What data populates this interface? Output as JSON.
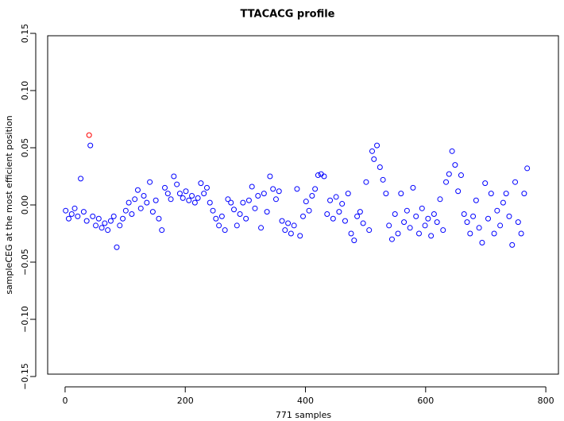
{
  "chart_data": {
    "type": "scatter",
    "title": "TTACACG profile",
    "x_label": "771 samples",
    "y_label": "sampleCEG at the most efficient position",
    "xlim": [
      -29,
      821
    ],
    "ylim": [
      -0.15,
      0.15
    ],
    "xticks": [
      0,
      200,
      400,
      600,
      800
    ],
    "yticks": [
      {
        "value": -0.15,
        "label": "−0.15"
      },
      {
        "value": -0.1,
        "label": "−0.10"
      },
      {
        "value": -0.05,
        "label": "−0.05"
      },
      {
        "value": 0,
        "label": "0.00"
      },
      {
        "value": 0.05,
        "label": "0.05"
      },
      {
        "value": 0.1,
        "label": "0.10"
      },
      {
        "value": 0.15,
        "label": "0.15"
      }
    ],
    "series": [
      {
        "color": "#0000ff",
        "x": [
          1,
          6,
          11,
          16,
          21,
          26,
          31,
          36,
          42,
          46,
          51,
          56,
          61,
          66,
          71,
          76,
          81,
          86,
          91,
          96,
          101,
          106,
          111,
          116,
          121,
          126,
          131,
          136,
          141,
          146,
          151,
          156,
          161,
          166,
          171,
          176,
          181,
          186,
          191,
          196,
          201,
          206,
          211,
          216,
          221,
          226,
          231,
          236,
          241,
          246,
          251,
          256,
          261,
          266,
          271,
          276,
          281,
          286,
          291,
          296,
          301,
          306,
          311,
          316,
          321,
          326,
          331,
          336,
          341,
          346,
          351,
          356,
          361,
          366,
          371,
          376,
          381,
          386,
          391,
          396,
          401,
          406,
          411,
          416,
          421,
          426,
          431,
          436,
          441,
          446,
          451,
          456,
          461,
          466,
          471,
          476,
          481,
          486,
          491,
          496,
          501,
          506,
          511,
          514,
          519,
          524,
          529,
          534,
          539,
          544,
          549,
          554,
          559,
          564,
          569,
          574,
          579,
          584,
          589,
          594,
          599,
          604,
          609,
          614,
          619,
          624,
          629,
          634,
          639,
          644,
          649,
          654,
          659,
          664,
          669,
          674,
          679,
          684,
          689,
          694,
          699,
          704,
          709,
          714,
          719,
          724,
          729,
          734,
          739,
          744,
          749,
          754,
          759,
          764,
          769
        ],
        "values": [
          -0.005,
          -0.012,
          -0.008,
          -0.003,
          -0.01,
          0.023,
          -0.006,
          -0.014,
          0.052,
          -0.01,
          -0.018,
          -0.012,
          -0.02,
          -0.016,
          -0.022,
          -0.014,
          -0.01,
          -0.037,
          -0.018,
          -0.012,
          -0.005,
          0.002,
          -0.008,
          0.005,
          0.013,
          -0.003,
          0.008,
          0.002,
          0.02,
          -0.006,
          0.004,
          -0.012,
          -0.022,
          0.015,
          0.01,
          0.005,
          0.025,
          0.018,
          0.01,
          0.006,
          0.012,
          0.004,
          0.008,
          0.002,
          0.006,
          0.019,
          0.01,
          0.015,
          0.002,
          -0.005,
          -0.012,
          -0.018,
          -0.01,
          -0.022,
          0.005,
          0.002,
          -0.004,
          -0.018,
          -0.008,
          0.002,
          -0.012,
          0.004,
          0.016,
          -0.003,
          0.008,
          -0.02,
          0.01,
          -0.006,
          0.025,
          0.014,
          0.005,
          0.012,
          -0.014,
          -0.022,
          -0.016,
          -0.025,
          -0.018,
          0.014,
          -0.027,
          -0.01,
          0.003,
          -0.005,
          0.008,
          0.014,
          0.026,
          0.027,
          0.025,
          -0.008,
          0.004,
          -0.012,
          0.007,
          -0.006,
          0.001,
          -0.014,
          0.01,
          -0.025,
          -0.031,
          -0.01,
          -0.006,
          -0.016,
          0.02,
          -0.022,
          0.047,
          0.04,
          0.052,
          0.033,
          0.022,
          0.01,
          -0.018,
          -0.03,
          -0.008,
          -0.025,
          0.01,
          -0.015,
          -0.005,
          -0.02,
          0.015,
          -0.01,
          -0.025,
          -0.003,
          -0.018,
          -0.012,
          -0.027,
          -0.008,
          -0.015,
          0.005,
          -0.022,
          0.02,
          0.027,
          0.047,
          0.035,
          0.012,
          0.026,
          -0.008,
          -0.015,
          -0.025,
          -0.01,
          0.004,
          -0.02,
          -0.033,
          0.019,
          -0.012,
          0.01,
          -0.025,
          -0.005,
          -0.018,
          0.002,
          0.01,
          -0.01,
          -0.035,
          0.02,
          -0.015,
          -0.025,
          0.01,
          0.032
        ]
      },
      {
        "color": "#ff0000",
        "x": [
          40
        ],
        "values": [
          0.061
        ]
      }
    ]
  }
}
